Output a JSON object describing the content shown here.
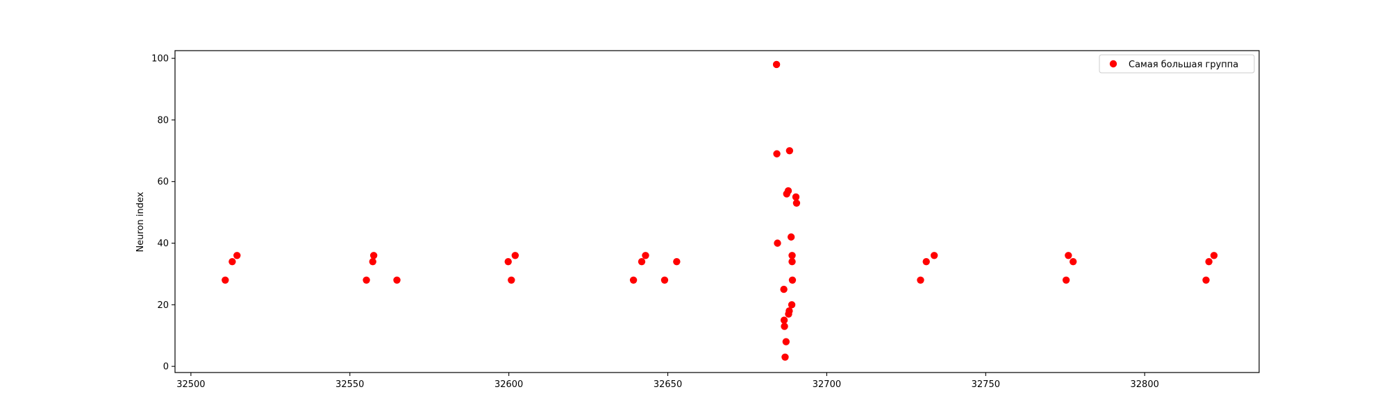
{
  "chart_data": {
    "type": "scatter",
    "title": "",
    "xlabel": "",
    "ylabel": "Neuron index",
    "xlim": [
      32495,
      32836
    ],
    "ylim": [
      -2,
      102.5
    ],
    "xticks": [
      32500,
      32550,
      32600,
      32650,
      32700,
      32750,
      32800
    ],
    "yticks": [
      0,
      20,
      40,
      60,
      80,
      100
    ],
    "grid": false,
    "legend_position": "top-right",
    "series": [
      {
        "name": "Самая большая группа",
        "color": "#ff0000",
        "marker": "circle",
        "points": [
          [
            32510.8,
            28
          ],
          [
            32513.0,
            34
          ],
          [
            32514.5,
            36
          ],
          [
            32555.2,
            28
          ],
          [
            32557.2,
            34
          ],
          [
            32557.5,
            36
          ],
          [
            32564.8,
            28
          ],
          [
            32599.8,
            34
          ],
          [
            32600.8,
            28
          ],
          [
            32602.0,
            36
          ],
          [
            32639.2,
            28
          ],
          [
            32641.8,
            34
          ],
          [
            32643.0,
            36
          ],
          [
            32649.0,
            28
          ],
          [
            32652.8,
            34
          ],
          [
            32684.2,
            98
          ],
          [
            32684.3,
            69
          ],
          [
            32684.5,
            40
          ],
          [
            32686.5,
            25
          ],
          [
            32686.6,
            15
          ],
          [
            32686.7,
            13
          ],
          [
            32686.9,
            3
          ],
          [
            32687.2,
            8
          ],
          [
            32687.4,
            56
          ],
          [
            32687.9,
            57
          ],
          [
            32688.0,
            17
          ],
          [
            32688.2,
            18
          ],
          [
            32688.3,
            70
          ],
          [
            32688.8,
            42
          ],
          [
            32689.0,
            20
          ],
          [
            32689.1,
            36
          ],
          [
            32689.1,
            34
          ],
          [
            32689.2,
            28
          ],
          [
            32690.3,
            55
          ],
          [
            32690.5,
            53
          ],
          [
            32729.5,
            28
          ],
          [
            32731.3,
            34
          ],
          [
            32733.8,
            36
          ],
          [
            32775.3,
            28
          ],
          [
            32776.0,
            36
          ],
          [
            32777.5,
            34
          ],
          [
            32819.3,
            28
          ],
          [
            32820.2,
            34
          ],
          [
            32821.8,
            36
          ]
        ]
      }
    ]
  }
}
